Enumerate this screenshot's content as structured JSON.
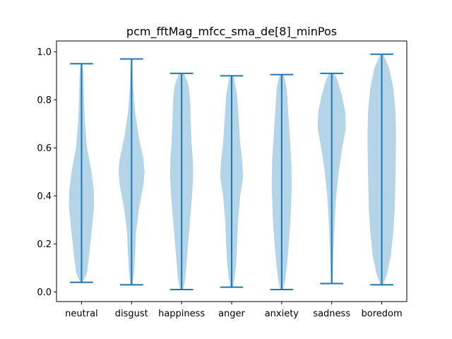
{
  "chart_data": {
    "type": "violin",
    "title": "pcm_fftMag_mfcc_sma_de[8]_minPos",
    "xlabel": "",
    "ylabel": "",
    "ylim": [
      -0.04,
      1.045
    ],
    "yticks": [
      0.0,
      0.2,
      0.4,
      0.6,
      0.8,
      1.0
    ],
    "ytick_labels": [
      "0.0",
      "0.2",
      "0.4",
      "0.6",
      "0.8",
      "1.0"
    ],
    "categories": [
      "neutral",
      "disgust",
      "happiness",
      "anger",
      "anxiety",
      "sadness",
      "boredom"
    ],
    "grid": false,
    "colors": {
      "body": "#b4d4e8",
      "line": "#1f77b4",
      "axis": "#000000"
    },
    "series": [
      {
        "category": "neutral",
        "min": 0.04,
        "max": 0.95,
        "profile": [
          [
            0.04,
            0.05
          ],
          [
            0.08,
            0.22
          ],
          [
            0.15,
            0.3
          ],
          [
            0.25,
            0.4
          ],
          [
            0.35,
            0.5
          ],
          [
            0.42,
            0.49
          ],
          [
            0.5,
            0.4
          ],
          [
            0.6,
            0.22
          ],
          [
            0.7,
            0.14
          ],
          [
            0.8,
            0.1
          ],
          [
            0.9,
            0.08
          ],
          [
            0.95,
            0.04
          ]
        ]
      },
      {
        "category": "disgust",
        "min": 0.03,
        "max": 0.97,
        "profile": [
          [
            0.03,
            0.04
          ],
          [
            0.08,
            0.1
          ],
          [
            0.15,
            0.14
          ],
          [
            0.25,
            0.18
          ],
          [
            0.35,
            0.3
          ],
          [
            0.45,
            0.48
          ],
          [
            0.5,
            0.52
          ],
          [
            0.55,
            0.48
          ],
          [
            0.65,
            0.28
          ],
          [
            0.75,
            0.14
          ],
          [
            0.85,
            0.07
          ],
          [
            0.97,
            0.03
          ]
        ]
      },
      {
        "category": "happiness",
        "min": 0.01,
        "max": 0.91,
        "profile": [
          [
            0.01,
            0.06
          ],
          [
            0.05,
            0.14
          ],
          [
            0.12,
            0.2
          ],
          [
            0.2,
            0.26
          ],
          [
            0.3,
            0.34
          ],
          [
            0.4,
            0.42
          ],
          [
            0.48,
            0.46
          ],
          [
            0.55,
            0.45
          ],
          [
            0.62,
            0.4
          ],
          [
            0.72,
            0.36
          ],
          [
            0.8,
            0.34
          ],
          [
            0.86,
            0.28
          ],
          [
            0.91,
            0.1
          ]
        ]
      },
      {
        "category": "anger",
        "min": 0.02,
        "max": 0.9,
        "profile": [
          [
            0.02,
            0.05
          ],
          [
            0.06,
            0.12
          ],
          [
            0.12,
            0.18
          ],
          [
            0.2,
            0.22
          ],
          [
            0.3,
            0.26
          ],
          [
            0.4,
            0.34
          ],
          [
            0.48,
            0.46
          ],
          [
            0.55,
            0.42
          ],
          [
            0.62,
            0.34
          ],
          [
            0.72,
            0.28
          ],
          [
            0.82,
            0.22
          ],
          [
            0.9,
            0.08
          ]
        ]
      },
      {
        "category": "anxiety",
        "min": 0.01,
        "max": 0.905,
        "profile": [
          [
            0.01,
            0.06
          ],
          [
            0.05,
            0.14
          ],
          [
            0.12,
            0.22
          ],
          [
            0.22,
            0.3
          ],
          [
            0.32,
            0.36
          ],
          [
            0.45,
            0.4
          ],
          [
            0.55,
            0.38
          ],
          [
            0.65,
            0.32
          ],
          [
            0.75,
            0.26
          ],
          [
            0.85,
            0.2
          ],
          [
            0.905,
            0.08
          ]
        ]
      },
      {
        "category": "sadness",
        "min": 0.035,
        "max": 0.91,
        "profile": [
          [
            0.035,
            0.03
          ],
          [
            0.1,
            0.05
          ],
          [
            0.2,
            0.08
          ],
          [
            0.3,
            0.12
          ],
          [
            0.4,
            0.18
          ],
          [
            0.5,
            0.28
          ],
          [
            0.6,
            0.42
          ],
          [
            0.68,
            0.56
          ],
          [
            0.75,
            0.54
          ],
          [
            0.82,
            0.4
          ],
          [
            0.88,
            0.24
          ],
          [
            0.91,
            0.1
          ]
        ]
      },
      {
        "category": "boredom",
        "min": 0.03,
        "max": 0.99,
        "profile": [
          [
            0.03,
            0.06
          ],
          [
            0.08,
            0.22
          ],
          [
            0.15,
            0.36
          ],
          [
            0.25,
            0.46
          ],
          [
            0.35,
            0.52
          ],
          [
            0.45,
            0.54
          ],
          [
            0.55,
            0.56
          ],
          [
            0.65,
            0.57
          ],
          [
            0.75,
            0.55
          ],
          [
            0.85,
            0.46
          ],
          [
            0.93,
            0.3
          ],
          [
            0.99,
            0.06
          ]
        ]
      }
    ]
  }
}
